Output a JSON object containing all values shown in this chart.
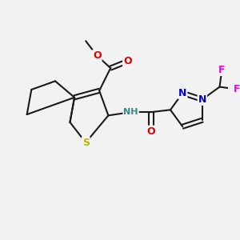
{
  "background_color": "#f2f2f2",
  "bond_color": "#1a1a1a",
  "bond_width": 1.5,
  "atom_colors": {
    "S": "#b8b800",
    "O": "#dd0000",
    "N": "#0000cc",
    "F": "#ee00ee",
    "H": "#338888",
    "C": "#1a1a1a"
  },
  "figsize": [
    3.0,
    3.0
  ],
  "dpi": 100
}
